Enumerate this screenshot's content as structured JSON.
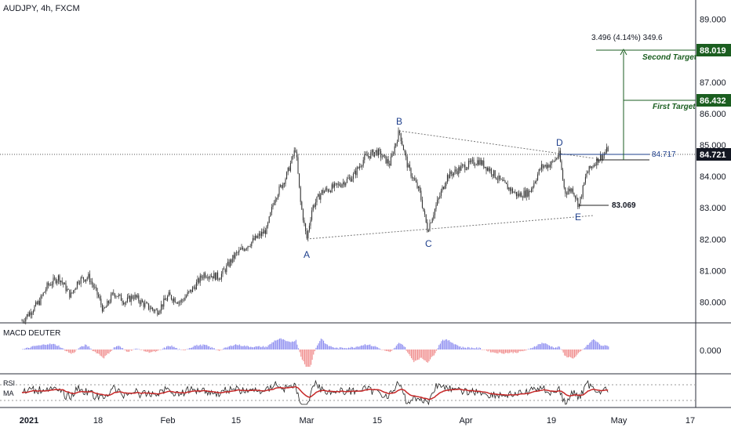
{
  "symbol_title": "AUDJPY, 4h, FXCM",
  "colors": {
    "candle": "#2a2a2a",
    "green_target": "#1b5e20",
    "macd_pos": "#8c8cf0",
    "macd_neg": "#f08c8c",
    "rsi_line": "#222222",
    "rsi_ma": "#c62828",
    "price_line": "#1e3f8c"
  },
  "chart_data": [
    {
      "type": "candlestick",
      "y_ticks": [
        "89.000",
        "88.000",
        "87.000",
        "86.000",
        "85.000",
        "84.000",
        "83.000",
        "82.000",
        "81.000",
        "80.000"
      ],
      "ylim": [
        79.3,
        89.4
      ],
      "x_ticks": [
        "2021",
        "18",
        "Feb",
        "15",
        "Mar",
        "15",
        "Apr",
        "19",
        "May",
        "17"
      ],
      "key_points": [
        {
          "label": "A",
          "value": 81.97
        },
        {
          "label": "B",
          "value": 85.47
        },
        {
          "label": "C",
          "value": 82.3
        },
        {
          "label": "D",
          "value": 84.7
        },
        {
          "label": "E",
          "value": 83.07
        }
      ],
      "annotations": {
        "measure_text": "3.496 (4.14%) 349.6",
        "second_target_label": "Second Target",
        "second_target_value": "88.019",
        "first_target_label": "First Target",
        "first_target_value": "86.432",
        "level_d_label": "84.717",
        "low_e_label": "83.069",
        "current_price": "84.721"
      }
    },
    {
      "type": "bar",
      "title": "MACD DEUTER",
      "y_ticks": [
        "0.000"
      ]
    },
    {
      "type": "line",
      "title": "RSI",
      "series": [
        {
          "name": "RSI"
        },
        {
          "name": "MA"
        }
      ]
    }
  ]
}
